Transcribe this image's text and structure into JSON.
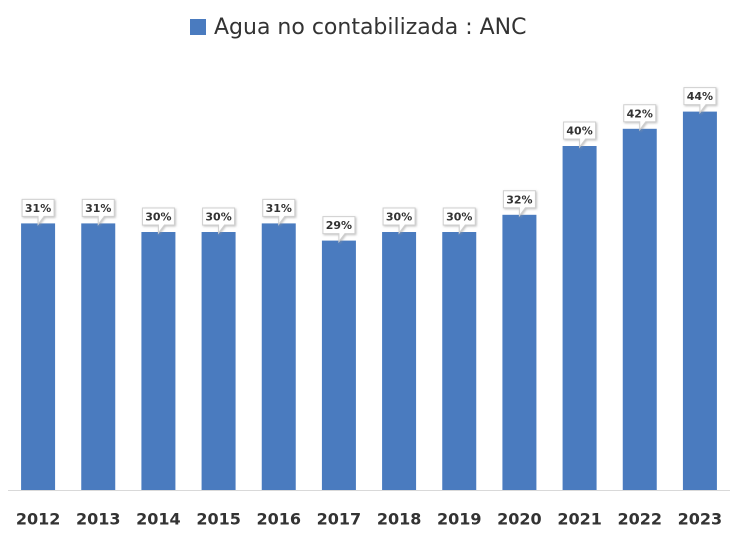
{
  "chart_data": {
    "type": "bar",
    "categories": [
      "2012",
      "2013",
      "2014",
      "2015",
      "2016",
      "2017",
      "2018",
      "2019",
      "2020",
      "2021",
      "2022",
      "2023"
    ],
    "series": [
      {
        "name": "Agua no contabilizada : ANC",
        "color": "#4a7bbf",
        "values": [
          31,
          31,
          30,
          30,
          31,
          29,
          30,
          30,
          32,
          40,
          42,
          44
        ],
        "value_labels": [
          "31%",
          "31%",
          "30%",
          "30%",
          "31%",
          "29%",
          "30%",
          "30%",
          "32%",
          "40%",
          "42%",
          "44%"
        ]
      }
    ],
    "legend": "top"
  }
}
